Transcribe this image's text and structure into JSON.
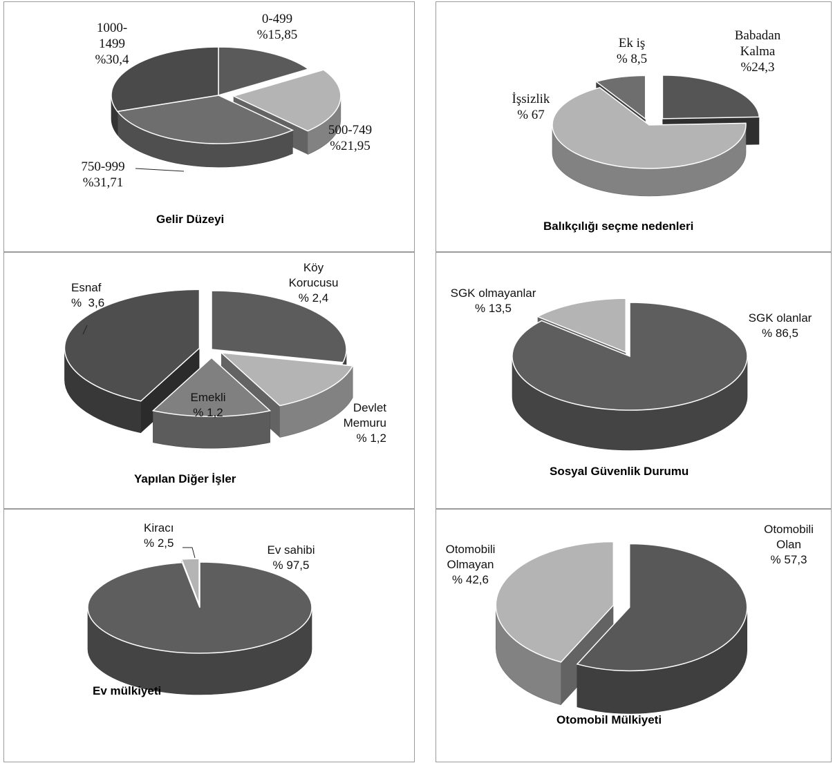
{
  "chart_data": [
    {
      "type": "pie",
      "title": "Gelir Düzeyi",
      "categories": [
        "0-499",
        "500-749",
        "750-999",
        "1000-1499"
      ],
      "values": [
        15.85,
        21.95,
        31.71,
        30.4
      ],
      "labels": [
        {
          "name": "0-499",
          "pct": "%15,85"
        },
        {
          "name": "500-749",
          "pct": "%21,95"
        },
        {
          "name": "750-999",
          "pct": "%31,71"
        },
        {
          "name_lines": [
            "1000-",
            "1499"
          ],
          "pct": "%30,4"
        }
      ],
      "colors": [
        "#5a5a5a",
        "#b4b4b4",
        "#6e6e6e",
        "#4a4a4a"
      ]
    },
    {
      "type": "pie",
      "title": "Balıkçılığı seçme nedenleri",
      "categories": [
        "Babadan Kalma",
        "İşsizlik",
        "Ek iş"
      ],
      "values": [
        24.3,
        67,
        8.5
      ],
      "labels": [
        {
          "name_lines": [
            "Babadan",
            "Kalma"
          ],
          "pct": "%24,3"
        },
        {
          "name": "İşsizlik",
          "pct": "% 67"
        },
        {
          "name": "Ek iş",
          "pct": "% 8,5"
        }
      ],
      "colors": [
        "#555555",
        "#b4b4b4",
        "#6e6e6e"
      ]
    },
    {
      "type": "pie",
      "title": "Yapılan Diğer İşler",
      "categories": [
        "Köy Korucusu",
        "Devlet Memuru",
        "Emekli",
        "Esnaf"
      ],
      "values": [
        2.4,
        1.2,
        1.2,
        3.6
      ],
      "labels": [
        {
          "name_lines": [
            "Köy",
            "Korucusu"
          ],
          "pct": "% 2,4"
        },
        {
          "name_lines": [
            "Devlet",
            "Memuru"
          ],
          "pct": "% 1,2"
        },
        {
          "name": "Emekli",
          "pct": "% 1,2"
        },
        {
          "name": "Esnaf",
          "pct": "%  3,6"
        }
      ],
      "colors": [
        "#5c5c5c",
        "#b4b4b4",
        "#808080",
        "#4e4e4e"
      ]
    },
    {
      "type": "pie",
      "title": "Sosyal Güvenlik Durumu",
      "categories": [
        "SGK olanlar",
        "SGK olmayanlar"
      ],
      "values": [
        86.5,
        13.5
      ],
      "labels": [
        {
          "name": "SGK olanlar",
          "pct": "% 86,5"
        },
        {
          "name": "SGK olmayanlar",
          "pct": "% 13,5"
        }
      ],
      "colors": [
        "#5e5e5e",
        "#b4b4b4"
      ]
    },
    {
      "type": "pie",
      "title": "Ev mülkiyeti",
      "categories": [
        "Ev sahibi",
        "Kiracı"
      ],
      "values": [
        97.5,
        2.5
      ],
      "labels": [
        {
          "name": "Ev sahibi",
          "pct": "% 97,5"
        },
        {
          "name": "Kiracı",
          "pct": "% 2,5"
        }
      ],
      "colors": [
        "#5e5e5e",
        "#b4b4b4"
      ]
    },
    {
      "type": "pie",
      "title": "Otomobil Mülkiyeti",
      "categories": [
        "Otomobili Olan",
        "Otomobili Olmayan"
      ],
      "values": [
        57.3,
        42.6
      ],
      "labels": [
        {
          "name_lines": [
            "Otomobili",
            "Olan"
          ],
          "pct": "% 57,3"
        },
        {
          "name_lines": [
            "Otomobili",
            "Olmayan"
          ],
          "pct": "% 42,6"
        }
      ],
      "colors": [
        "#585858",
        "#b4b4b4"
      ]
    }
  ]
}
